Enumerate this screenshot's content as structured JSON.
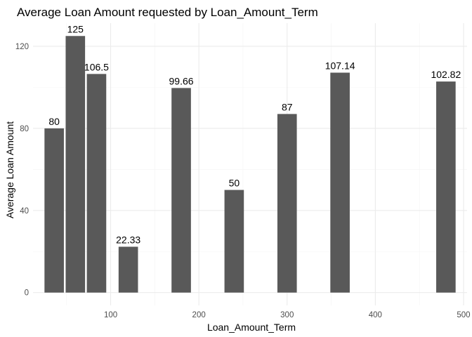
{
  "chart_data": {
    "type": "bar",
    "title": "Average Loan Amount requested by Loan_Amount_Term",
    "xlabel": "Loan_Amount_Term",
    "ylabel": "Average Loan Amount",
    "x": [
      36,
      60,
      84,
      120,
      180,
      240,
      300,
      360,
      480
    ],
    "values": [
      80,
      125,
      106.5,
      22.33,
      99.66,
      50,
      87,
      107.14,
      102.82
    ],
    "data_labels": [
      "80",
      "125",
      "106.5",
      "22.33",
      "99.66",
      "50",
      "87",
      "107.14",
      "102.82"
    ],
    "xlim": [
      12,
      504
    ],
    "ylim": [
      -6.25,
      131.25
    ],
    "x_ticks": [
      100,
      200,
      300,
      400,
      500
    ],
    "x_tick_labels": [
      "100",
      "200",
      "300",
      "400",
      "500"
    ],
    "y_ticks": [
      0,
      40,
      80,
      120
    ],
    "y_tick_labels": [
      "0",
      "40",
      "80",
      "120"
    ],
    "grid": true,
    "bar_color": "#595959",
    "background": "#ffffff"
  }
}
